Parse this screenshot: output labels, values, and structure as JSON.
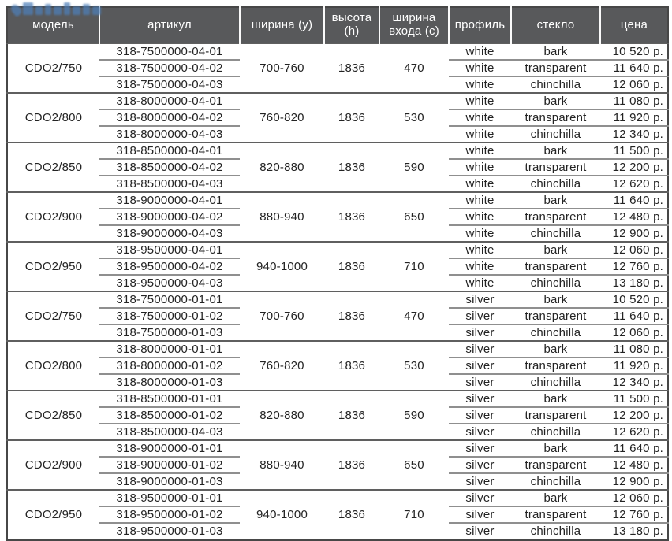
{
  "colors": {
    "header_background": "#58595b",
    "header_text": "#ffffff",
    "body_text": "#232323",
    "outer_border": "#474747",
    "group_divider": "#5f5f5f",
    "row_divider": "#8f8f8f",
    "watermark_blue": "#4e7fb8"
  },
  "icons": {
    "watermark_logo": "water-drop-logo"
  },
  "header": {
    "columns": [
      {
        "key": "model",
        "label": "модель"
      },
      {
        "key": "article",
        "label": "артикул"
      },
      {
        "key": "width",
        "label": "ширина (y)"
      },
      {
        "key": "height",
        "label": "высота (h)"
      },
      {
        "key": "entry",
        "label": "ширина входа (c)"
      },
      {
        "key": "profile",
        "label": "профиль"
      },
      {
        "key": "glass",
        "label": "стекло"
      },
      {
        "key": "price",
        "label": "цена"
      }
    ]
  },
  "groups": [
    {
      "model": "CDO2/750",
      "width": "700-760",
      "height": "1836",
      "entry": "470",
      "rows": [
        {
          "article": "318-7500000-04-01",
          "profile": "white",
          "glass": "bark",
          "price": "10 520 р."
        },
        {
          "article": "318-7500000-04-02",
          "profile": "white",
          "glass": "transparent",
          "price": "11 640 р."
        },
        {
          "article": "318-7500000-04-03",
          "profile": "white",
          "glass": "chinchilla",
          "price": "12 060 р."
        }
      ]
    },
    {
      "model": "CDO2/800",
      "width": "760-820",
      "height": "1836",
      "entry": "530",
      "rows": [
        {
          "article": "318-8000000-04-01",
          "profile": "white",
          "glass": "bark",
          "price": "11 080 р."
        },
        {
          "article": "318-8000000-04-02",
          "profile": "white",
          "glass": "transparent",
          "price": "11 920 р."
        },
        {
          "article": "318-8000000-04-03",
          "profile": "white",
          "glass": "chinchilla",
          "price": "12 340 р."
        }
      ]
    },
    {
      "model": "CDO2/850",
      "width": "820-880",
      "height": "1836",
      "entry": "590",
      "rows": [
        {
          "article": "318-8500000-04-01",
          "profile": "white",
          "glass": "bark",
          "price": "11 500 р."
        },
        {
          "article": "318-8500000-04-02",
          "profile": "white",
          "glass": "transparent",
          "price": "12 200 р."
        },
        {
          "article": "318-8500000-04-03",
          "profile": "white",
          "glass": "chinchilla",
          "price": "12 620 р."
        }
      ]
    },
    {
      "model": "CDO2/900",
      "width": "880-940",
      "height": "1836",
      "entry": "650",
      "rows": [
        {
          "article": "318-9000000-04-01",
          "profile": "white",
          "glass": "bark",
          "price": "11 640 р."
        },
        {
          "article": "318-9000000-04-02",
          "profile": "white",
          "glass": "transparent",
          "price": "12 480 р."
        },
        {
          "article": "318-9000000-04-03",
          "profile": "white",
          "glass": "chinchilla",
          "price": "12 900 р."
        }
      ]
    },
    {
      "model": "CDO2/950",
      "width": "940-1000",
      "height": "1836",
      "entry": "710",
      "rows": [
        {
          "article": "318-9500000-04-01",
          "profile": "white",
          "glass": "bark",
          "price": "12 060 р."
        },
        {
          "article": "318-9500000-04-02",
          "profile": "white",
          "glass": "transparent",
          "price": "12 760 р."
        },
        {
          "article": "318-9500000-04-03",
          "profile": "white",
          "glass": "chinchilla",
          "price": "13 180 р."
        }
      ]
    },
    {
      "model": "CDO2/750",
      "width": "700-760",
      "height": "1836",
      "entry": "470",
      "rows": [
        {
          "article": "318-7500000-01-01",
          "profile": "silver",
          "glass": "bark",
          "price": "10 520 р."
        },
        {
          "article": "318-7500000-01-02",
          "profile": "silver",
          "glass": "transparent",
          "price": "11 640 р."
        },
        {
          "article": "318-7500000-01-03",
          "profile": "silver",
          "glass": "chinchilla",
          "price": "12 060 р."
        }
      ]
    },
    {
      "model": "CDO2/800",
      "width": "760-820",
      "height": "1836",
      "entry": "530",
      "rows": [
        {
          "article": "318-8000000-01-01",
          "profile": "silver",
          "glass": "bark",
          "price": "11 080 р."
        },
        {
          "article": "318-8000000-01-02",
          "profile": "silver",
          "glass": "transparent",
          "price": "11 920 р."
        },
        {
          "article": "318-8000000-01-03",
          "profile": "silver",
          "glass": "chinchilla",
          "price": "12 340 р."
        }
      ]
    },
    {
      "model": "CDO2/850",
      "width": "820-880",
      "height": "1836",
      "entry": "590",
      "rows": [
        {
          "article": "318-8500000-01-01",
          "profile": "silver",
          "glass": "bark",
          "price": "11 500 р."
        },
        {
          "article": "318-8500000-01-02",
          "profile": "silver",
          "glass": "transparent",
          "price": "12 200 р."
        },
        {
          "article": "318-8500000-04-03",
          "profile": "silver",
          "glass": "chinchilla",
          "price": "12 620 р."
        }
      ]
    },
    {
      "model": "CDO2/900",
      "width": "880-940",
      "height": "1836",
      "entry": "650",
      "rows": [
        {
          "article": "318-9000000-01-01",
          "profile": "silver",
          "glass": "bark",
          "price": "11 640 р."
        },
        {
          "article": "318-9000000-01-02",
          "profile": "silver",
          "glass": "transparent",
          "price": "12 480 р."
        },
        {
          "article": "318-9000000-01-03",
          "profile": "silver",
          "glass": "chinchilla",
          "price": "12 900 р."
        }
      ]
    },
    {
      "model": "CDO2/950",
      "width": "940-1000",
      "height": "1836",
      "entry": "710",
      "rows": [
        {
          "article": "318-9500000-01-01",
          "profile": "silver",
          "glass": "bark",
          "price": "12 060 р."
        },
        {
          "article": "318-9500000-01-02",
          "profile": "silver",
          "glass": "transparent",
          "price": "12 760 р."
        },
        {
          "article": "318-9500000-01-03",
          "profile": "silver",
          "glass": "chinchilla",
          "price": "13 180 р."
        }
      ]
    }
  ]
}
